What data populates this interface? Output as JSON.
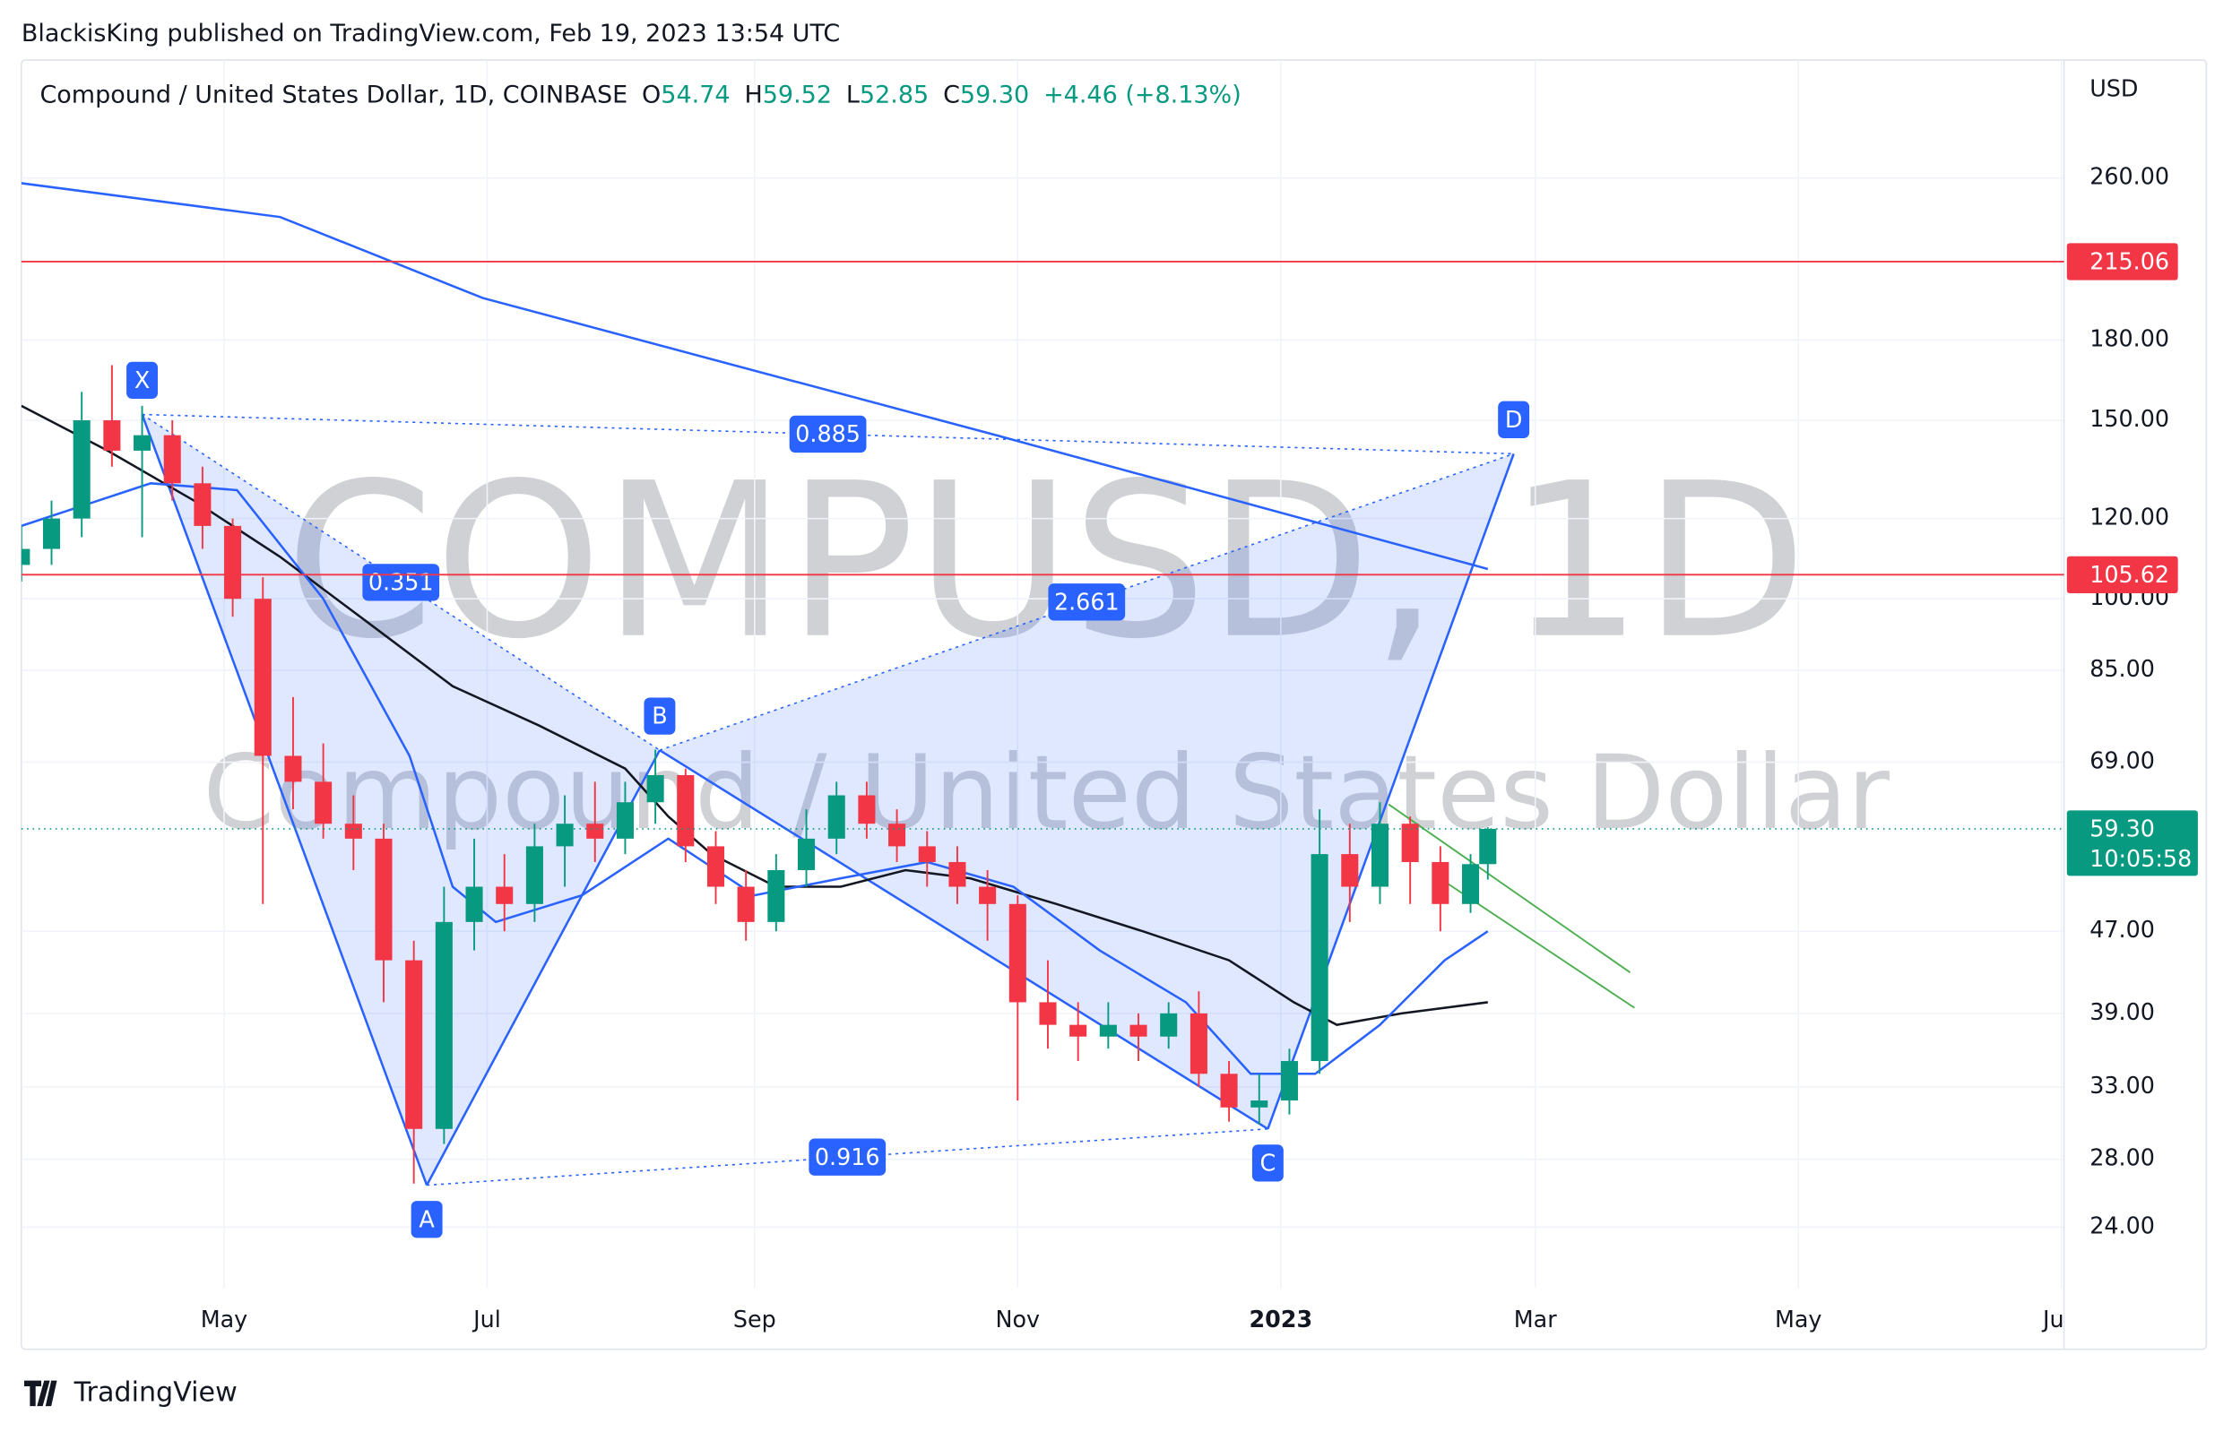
{
  "header": {
    "publisher": "BlackisKing published on TradingView.com, Feb 19, 2023 13:54 UTC"
  },
  "chart_data": {
    "type": "candlestick",
    "title": "Compound / United States Dollar, 1D, COINBASE",
    "ohlc_legend": [
      {
        "label": "O",
        "value": "54.74"
      },
      {
        "label": "H",
        "value": "59.52"
      },
      {
        "label": "L",
        "value": "52.85"
      },
      {
        "label": "C",
        "value": "59.30"
      }
    ],
    "change": "+4.46 (+8.13%)",
    "watermark": [
      "COMPUSD, 1D",
      "Compound / United States Dollar"
    ],
    "y_unit": "USD",
    "x": [
      0,
      7,
      14,
      21,
      28,
      35,
      42,
      49,
      56,
      63,
      70,
      77,
      84,
      91,
      98,
      105,
      112,
      119,
      126,
      133,
      140,
      147,
      154,
      161,
      168,
      175,
      182,
      189,
      196,
      203,
      210,
      217,
      224,
      231,
      238,
      245,
      252,
      259,
      266,
      273,
      280,
      287,
      294,
      301,
      308,
      315,
      322,
      329,
      336,
      340
    ],
    "open": [
      108,
      112,
      120,
      150,
      140,
      145,
      130,
      118,
      100,
      70,
      66,
      60,
      58,
      44,
      30,
      48,
      52,
      50,
      57,
      60,
      58,
      63,
      67,
      57,
      52,
      48,
      54,
      58,
      64,
      60,
      57,
      55,
      52,
      50,
      40,
      38,
      37,
      38,
      37,
      39,
      34,
      31.5,
      32,
      35,
      56,
      52,
      60,
      55,
      50,
      54.74
    ],
    "high": [
      118,
      125,
      160,
      170,
      155,
      150,
      135,
      120,
      105,
      80,
      72,
      64,
      60,
      46,
      52,
      58,
      56,
      60,
      64,
      66,
      66,
      71,
      68,
      59,
      54,
      56,
      62,
      66,
      66,
      62,
      59,
      57,
      54,
      51,
      44,
      40,
      40,
      39,
      40,
      41,
      35,
      34,
      36,
      62,
      60,
      63,
      61,
      57,
      56,
      59.52
    ],
    "low": [
      104,
      108,
      115,
      135,
      115,
      125,
      112,
      96,
      50,
      62,
      58,
      54,
      40,
      26.5,
      29,
      45,
      47,
      48,
      52,
      55,
      56,
      60,
      55,
      50,
      46,
      47,
      52,
      56,
      58,
      55,
      52,
      50,
      46,
      32,
      36,
      35,
      36,
      35,
      36,
      33,
      30.5,
      30.3,
      31,
      34,
      48,
      50,
      50,
      47,
      49,
      52.85
    ],
    "close": [
      112,
      120,
      150,
      140,
      145,
      130,
      118,
      100,
      70,
      66,
      60,
      58,
      44,
      30,
      48,
      52,
      50,
      57,
      60,
      58,
      63,
      67,
      57,
      52,
      48,
      54,
      58,
      64,
      60,
      57,
      55,
      52,
      50,
      40,
      38,
      37,
      38,
      37,
      39,
      34,
      31.5,
      32,
      35,
      56,
      52,
      60,
      55,
      50,
      54.74,
      59.3
    ],
    "up_color": "#089981",
    "down_color": "#f23645",
    "log_scale": true,
    "grid": true,
    "xlim": [
      0,
      473.6
    ],
    "xticks": [
      {
        "value": 47,
        "label": "May"
      },
      {
        "value": 108,
        "label": "Jul"
      },
      {
        "value": 170,
        "label": "Sep"
      },
      {
        "value": 231,
        "label": "Nov"
      },
      {
        "value": 292,
        "label": "2023"
      },
      {
        "value": 351,
        "label": "Mar"
      },
      {
        "value": 412,
        "label": "May"
      },
      {
        "value": 473,
        "label": "Ju"
      }
    ],
    "ylim": [
      20.9,
      340
    ],
    "yticks": [
      {
        "value": 24,
        "label": "24.00"
      },
      {
        "value": 28,
        "label": "28.00"
      },
      {
        "value": 33,
        "label": "33.00"
      },
      {
        "value": 39,
        "label": "39.00"
      },
      {
        "value": 47,
        "label": "47.00"
      },
      {
        "value": 69,
        "label": "69.00"
      },
      {
        "value": 85,
        "label": "85.00"
      },
      {
        "value": 100,
        "label": "100.00"
      },
      {
        "value": 120,
        "label": "120.00"
      },
      {
        "value": 150,
        "label": "150.00"
      },
      {
        "value": 180,
        "label": "180.00"
      },
      {
        "value": 260,
        "label": "260.00"
      }
    ],
    "lines": [
      {
        "color": "#131722",
        "x": [
          0,
          20,
          40,
          60,
          80,
          100,
          120,
          140,
          150,
          160,
          175,
          190,
          205,
          220,
          240,
          260,
          280,
          295,
          305,
          320,
          340
        ],
        "values": [
          155,
          140,
          125,
          110,
          95,
          82,
          75,
          68,
          61,
          56,
          52,
          52,
          54,
          53,
          50,
          47,
          44,
          40,
          38,
          39,
          40
        ]
      },
      {
        "color": "#2962ff",
        "x": [
          0,
          30,
          50,
          70,
          90,
          100,
          110,
          130,
          150,
          170,
          190,
          210,
          230,
          250,
          270,
          285,
          300,
          315,
          330,
          340
        ],
        "values": [
          118,
          130,
          128,
          100,
          70,
          52,
          48,
          51,
          58,
          51,
          53,
          55,
          52,
          45,
          40,
          34,
          34,
          38,
          44,
          47
        ]
      },
      {
        "color": "#2962ff",
        "x": [
          0,
          60,
          107,
          226,
          340
        ],
        "values": [
          257,
          238,
          198,
          145,
          107
        ]
      }
    ],
    "trendlines": [
      {
        "color": "#4caf50",
        "x": [
          317,
          373
        ],
        "values": [
          62.7,
          42.8
        ]
      },
      {
        "color": "#4caf50",
        "x": [
          328,
          374
        ],
        "values": [
          53.3,
          39.5
        ]
      }
    ],
    "levels": [
      {
        "value": 215.06,
        "color": "#f23645"
      },
      {
        "value": 105.62,
        "color": "#f23645"
      }
    ],
    "last_price": {
      "value": 59.3,
      "value_label": "59.30",
      "countdown": "10:05:58",
      "color": "#089981"
    },
    "pattern": {
      "color": "#2962ff",
      "points": [
        {
          "label": "X",
          "x": 28,
          "value": 152
        },
        {
          "label": "A",
          "x": 94,
          "value": 26.4
        },
        {
          "label": "B",
          "x": 148,
          "value": 70.9
        },
        {
          "label": "C",
          "x": 289,
          "value": 30.0
        },
        {
          "label": "D",
          "x": 346,
          "value": 139
        }
      ],
      "ratios": [
        "0.885",
        "0.351",
        "2.661",
        "0.916"
      ]
    }
  },
  "footer": {
    "logo": "TradingView"
  }
}
